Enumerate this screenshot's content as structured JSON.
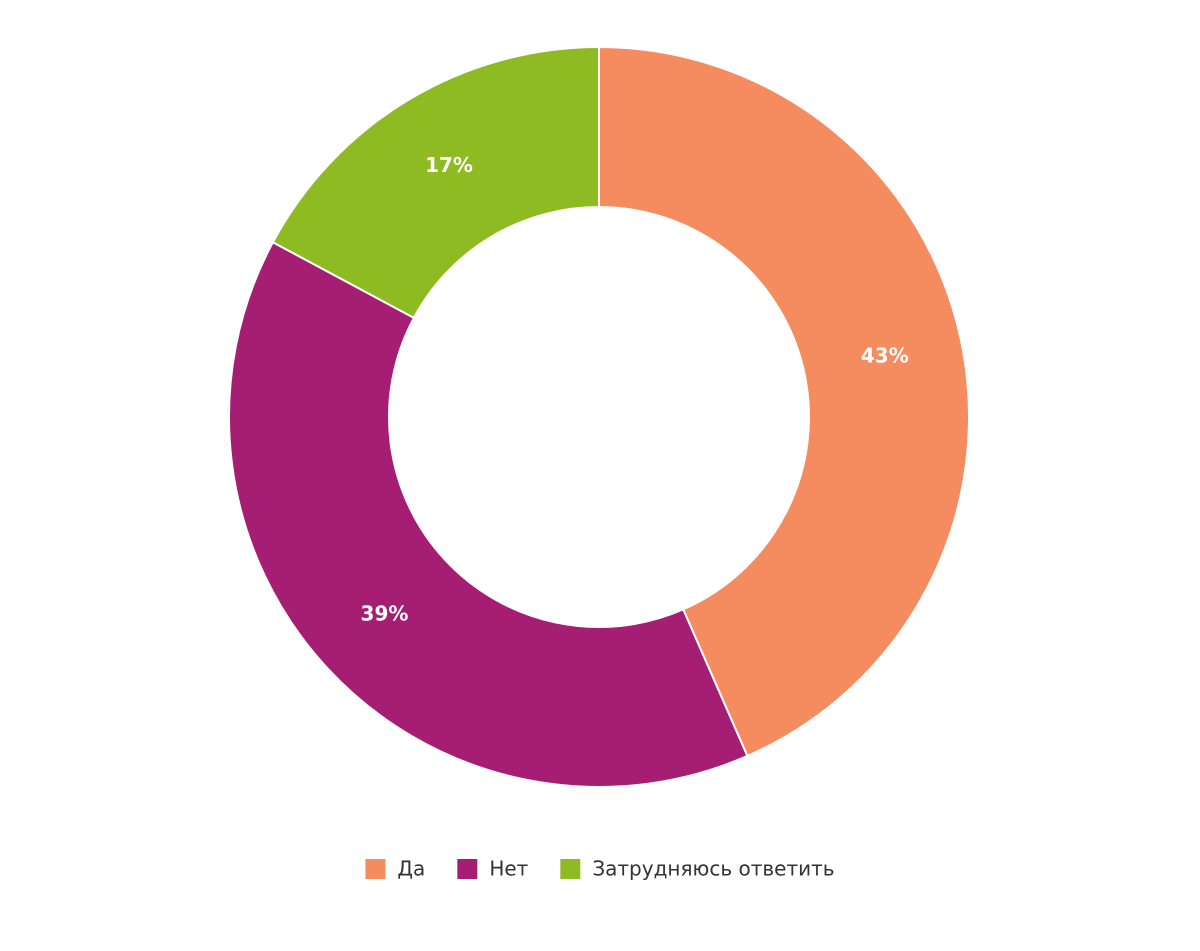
{
  "chart_data": {
    "type": "donut",
    "categories": [
      "Да",
      "Нет",
      "Затрудняюсь ответить"
    ],
    "values": [
      43,
      39,
      17
    ],
    "value_labels": [
      "43%",
      "39%",
      "17%"
    ],
    "colors": [
      "#f48c5f",
      "#a51e74",
      "#8ebb22"
    ],
    "legend": "bottom"
  }
}
